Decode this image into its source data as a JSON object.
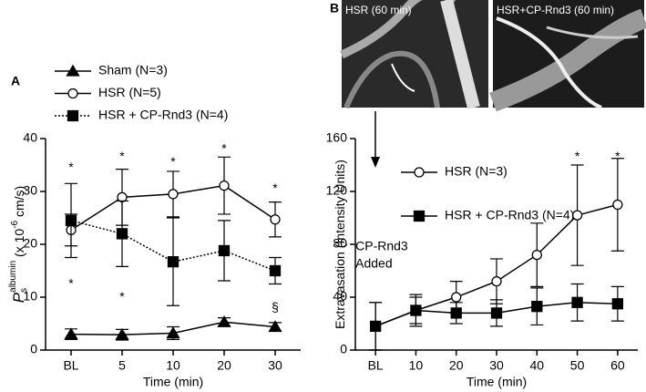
{
  "images": [
    {
      "label": "HSR (60 min)"
    },
    {
      "label": "HSR+CP-Rnd3 (60 min)"
    }
  ],
  "chart_data": [
    {
      "type": "line",
      "panel_label": "A",
      "xlabel": "Time (min)",
      "ylabel": {
        "symbol": "P",
        "sub": "s",
        "sup": "albumin",
        "text": " (x 10",
        "exp": "-6",
        "unit": " cm/s)"
      },
      "categories": [
        "BL",
        "5",
        "10",
        "20",
        "30"
      ],
      "ylim": [
        0,
        40
      ],
      "yticks": [
        0,
        10,
        20,
        30,
        40
      ],
      "series": [
        {
          "name": "Sham (N=3)",
          "color": "#000000",
          "marker": "triangle",
          "marker_fill": "#000000",
          "line_style": "solid",
          "values": [
            3.0,
            2.9,
            3.2,
            5.3,
            4.4
          ],
          "errors": [
            1.0,
            1.0,
            1.2,
            0.8,
            0.8
          ]
        },
        {
          "name": "HSR (N=5)",
          "color": "#000000",
          "marker": "circle",
          "marker_fill": "#ffffff",
          "line_style": "solid",
          "values": [
            22.7,
            28.9,
            29.5,
            31.1,
            24.7
          ],
          "errors": [
            3.0,
            5.3,
            4.3,
            5.4,
            3.3
          ]
        },
        {
          "name": "HSR + CP-Rnd3 (N=4)",
          "color": "#000000",
          "marker": "square",
          "marker_fill": "#000000",
          "line_style": "dotted",
          "values": [
            24.5,
            22.0,
            16.7,
            18.8,
            15.0
          ],
          "errors": [
            7.0,
            6.2,
            8.3,
            5.7,
            2.5
          ]
        }
      ],
      "annotations": [
        {
          "text": "*",
          "x": "BL",
          "y": 35.5
        },
        {
          "text": "*",
          "x": "BL",
          "y": 13.5
        },
        {
          "text": "*",
          "x": "5",
          "y": 37.5
        },
        {
          "text": "*",
          "x": "5",
          "y": 11
        },
        {
          "text": "*",
          "x": "10",
          "y": 36.5
        },
        {
          "text": "*",
          "x": "20",
          "y": 39
        },
        {
          "text": "*",
          "x": "30",
          "y": 31.5
        },
        {
          "text": "§",
          "x": "30",
          "y": 9
        }
      ]
    },
    {
      "type": "line",
      "panel_label": "B",
      "xlabel": "Time (min)",
      "ylabel": {
        "text": "Extravasation (Intensity Units)"
      },
      "categories": [
        "BL",
        "10",
        "20",
        "30",
        "40",
        "50",
        "60"
      ],
      "ylim": [
        0,
        160
      ],
      "yticks": [
        0,
        40,
        80,
        120,
        160
      ],
      "series": [
        {
          "name": "HSR (N=3)",
          "color": "#000000",
          "marker": "circle",
          "marker_fill": "#ffffff",
          "line_style": "solid",
          "values": [
            18,
            30,
            40,
            52,
            72,
            102,
            110
          ],
          "errors": [
            18,
            10,
            12,
            17,
            24,
            38,
            35
          ]
        },
        {
          "name": "HSR + CP-Rnd3 (N=4)",
          "color": "#000000",
          "marker": "square",
          "marker_fill": "#000000",
          "line_style": "solid",
          "values": [
            18,
            30,
            28,
            28,
            33,
            36,
            35
          ],
          "errors": [
            18,
            12,
            8,
            10,
            14,
            14,
            13
          ]
        }
      ],
      "annotations": [
        {
          "text": "*",
          "x": "50",
          "y": 150
        },
        {
          "text": "*",
          "x": "60",
          "y": 150
        },
        {
          "text": "CP-Rnd3",
          "x": "BL",
          "y": 78
        },
        {
          "text": "Added",
          "x": "BL",
          "y": 65
        }
      ]
    }
  ]
}
